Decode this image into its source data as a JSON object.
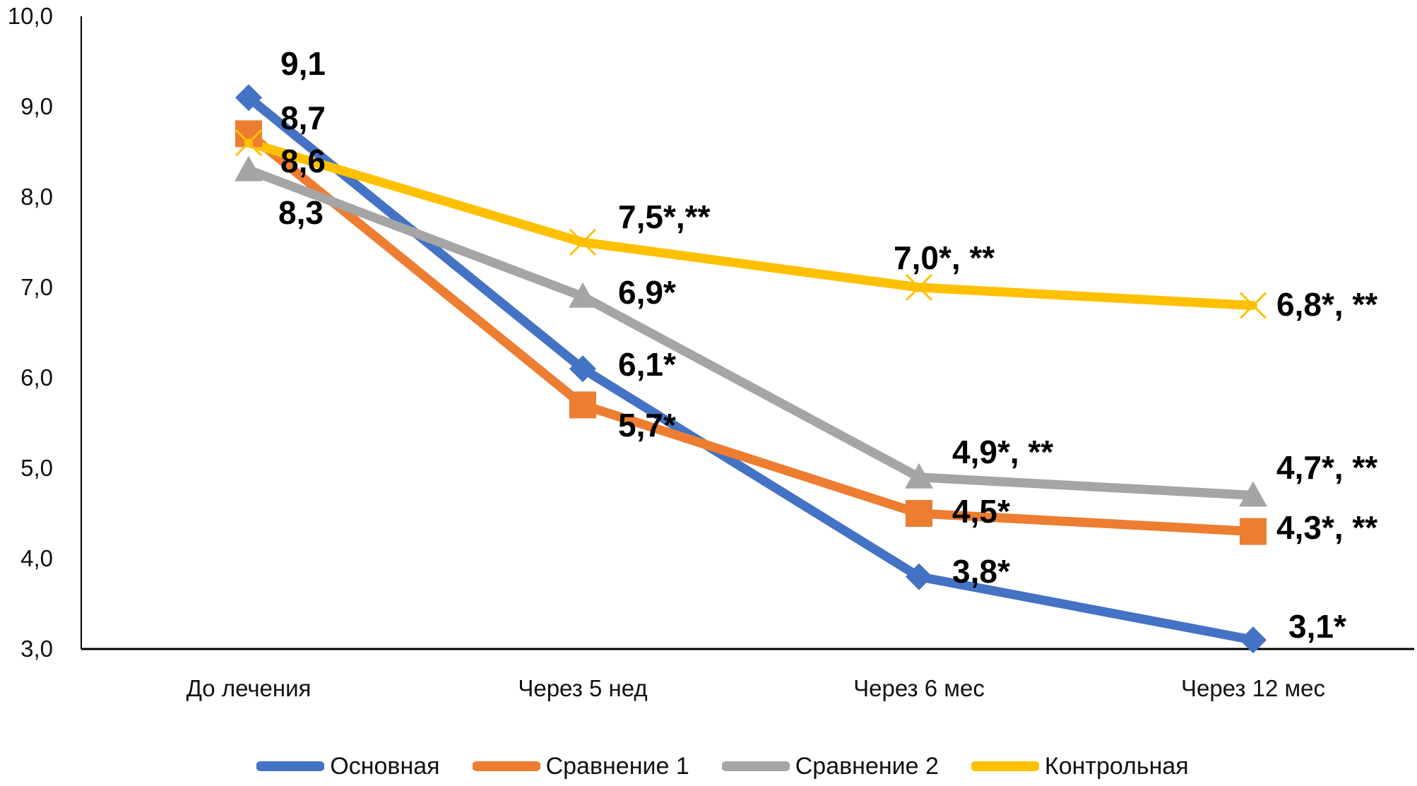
{
  "chart_data": {
    "type": "line",
    "categories": [
      "До лечения",
      "Через 5 нед",
      "Через 6 мес",
      "Через 12 мес"
    ],
    "ylim": [
      3.0,
      10.0
    ],
    "y_ticks": [
      "3,0",
      "4,0",
      "5,0",
      "6,0",
      "7,0",
      "8,0",
      "9,0",
      "10,0"
    ],
    "grid": false,
    "legend_position": "bottom",
    "series": [
      {
        "name": "Основная",
        "color": "#4472C4",
        "marker": "diamond",
        "values": [
          9.1,
          6.1,
          3.8,
          3.1
        ],
        "labels": [
          "9,1",
          "6,1*",
          "3,8*",
          "3,1*"
        ]
      },
      {
        "name": "Сравнение 1",
        "color": "#ED7D31",
        "marker": "square",
        "values": [
          8.7,
          5.7,
          4.5,
          4.3
        ],
        "labels": [
          "8,7",
          "5,7*",
          "4,5*",
          "4,3*, **"
        ]
      },
      {
        "name": "Сравнение 2",
        "color": "#A5A5A5",
        "marker": "triangle",
        "values": [
          8.3,
          6.9,
          4.9,
          4.7
        ],
        "labels": [
          "8,3",
          "6,9*",
          "4,9*, **",
          "4,7*, **"
        ]
      },
      {
        "name": "Контрольная",
        "color": "#FFC000",
        "marker": "x",
        "values": [
          8.6,
          7.5,
          7.0,
          6.8
        ],
        "labels": [
          "8,6",
          "7,5*,**",
          "7,0*, **",
          "6,8*, **"
        ]
      }
    ]
  }
}
